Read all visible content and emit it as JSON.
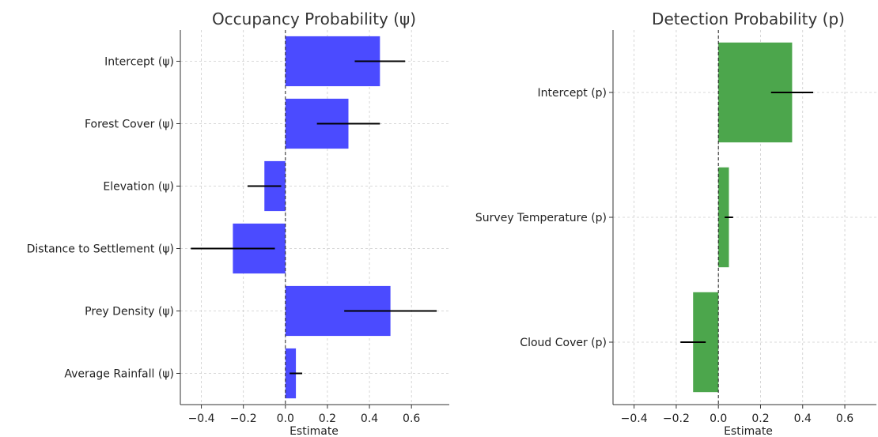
{
  "chart_data": [
    {
      "type": "bar",
      "orientation": "horizontal",
      "title": "Occupancy Probability (ψ)",
      "xlabel": "Estimate",
      "ylabel": "",
      "categories": [
        "Intercept (ψ)",
        "Forest Cover (ψ)",
        "Elevation (ψ)",
        "Distance to Settlement (ψ)",
        "Prey Density (ψ)",
        "Average Rainfall (ψ)"
      ],
      "values": [
        0.45,
        0.3,
        -0.1,
        -0.25,
        0.5,
        0.05
      ],
      "ci_low": [
        0.33,
        0.15,
        -0.18,
        -0.45,
        0.28,
        0.02
      ],
      "ci_high": [
        0.57,
        0.45,
        -0.02,
        -0.05,
        0.72,
        0.08
      ],
      "xlim": [
        -0.5,
        0.78
      ],
      "xticks": [
        -0.4,
        -0.2,
        0.0,
        0.2,
        0.4,
        0.6
      ],
      "xtick_labels": [
        "−0.4",
        "−0.2",
        "0.0",
        "0.2",
        "0.4",
        "0.6"
      ],
      "color": "#4b4bff",
      "grid": true
    },
    {
      "type": "bar",
      "orientation": "horizontal",
      "title": "Detection Probability (p)",
      "xlabel": "Estimate",
      "ylabel": "",
      "categories": [
        "Intercept (p)",
        "Survey Temperature (p)",
        "Cloud Cover (p)"
      ],
      "values": [
        0.35,
        0.05,
        -0.12
      ],
      "ci_low": [
        0.25,
        0.03,
        -0.18
      ],
      "ci_high": [
        0.45,
        0.07,
        -0.06
      ],
      "xlim": [
        -0.5,
        0.75
      ],
      "xticks": [
        -0.4,
        -0.2,
        0.0,
        0.2,
        0.4,
        0.6
      ],
      "xtick_labels": [
        "−0.4",
        "−0.2",
        "0.0",
        "0.2",
        "0.4",
        "0.6"
      ],
      "color": "#4ca64c",
      "grid": true
    }
  ]
}
